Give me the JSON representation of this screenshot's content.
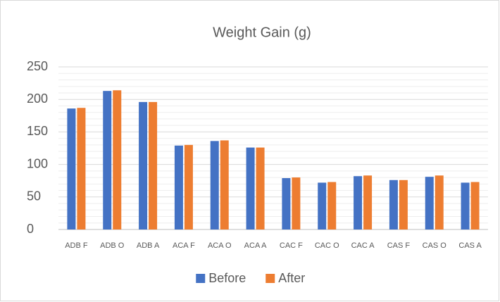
{
  "chart_data": {
    "type": "bar",
    "title": "Weight Gain (g)",
    "categories": [
      "ADB F",
      "ADB O",
      "ADB A",
      "ACA F",
      "ACA O",
      "ACA A",
      "CAC F",
      "CAC O",
      "CAC A",
      "CAS F",
      "CAS O",
      "CAS A"
    ],
    "series": [
      {
        "name": "Before",
        "color": "#4472c4",
        "values": [
          186,
          213,
          196,
          129,
          136,
          126,
          79,
          72,
          82,
          76,
          81,
          72
        ]
      },
      {
        "name": "After",
        "color": "#ed7d31",
        "values": [
          187,
          214,
          196,
          130,
          137,
          126,
          80,
          73,
          83,
          76,
          83,
          73
        ]
      }
    ],
    "ylim": [
      0,
      250
    ],
    "yticks": [
      0,
      50,
      100,
      150,
      200,
      250
    ],
    "grid": true,
    "minor_grid": true,
    "legend": "bottom"
  }
}
